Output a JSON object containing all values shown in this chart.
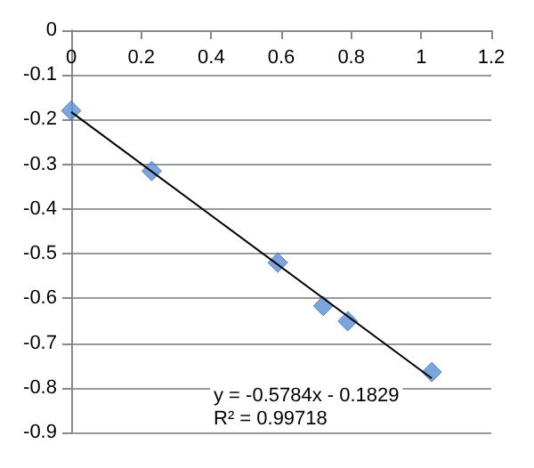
{
  "chart_data": {
    "type": "scatter",
    "x": [
      0,
      0.23,
      0.59,
      0.72,
      0.79,
      1.03
    ],
    "series": [
      {
        "color": "#5b8fd6",
        "marker": "diamond",
        "values": [
          -0.18,
          -0.315,
          -0.52,
          -0.617,
          -0.651,
          -0.765
        ]
      },
      {
        "type": "line",
        "color": "#000000",
        "marker": "none",
        "x": [
          0,
          1.03
        ],
        "values": [
          -0.183,
          -0.779
        ]
      }
    ],
    "xlim": [
      0,
      1.2
    ],
    "xticks": [
      0,
      0.2,
      0.4,
      0.6,
      0.8,
      1,
      1.2
    ],
    "ylim": [
      -0.9,
      0
    ],
    "yticks": [
      -0.9,
      -0.8,
      -0.7,
      -0.6,
      -0.5,
      -0.4,
      -0.3,
      -0.2,
      -0.1,
      0
    ],
    "grid": "y",
    "annotations": [
      "y = -0.5784x - 0.1829",
      "R² = 0.99718"
    ]
  }
}
